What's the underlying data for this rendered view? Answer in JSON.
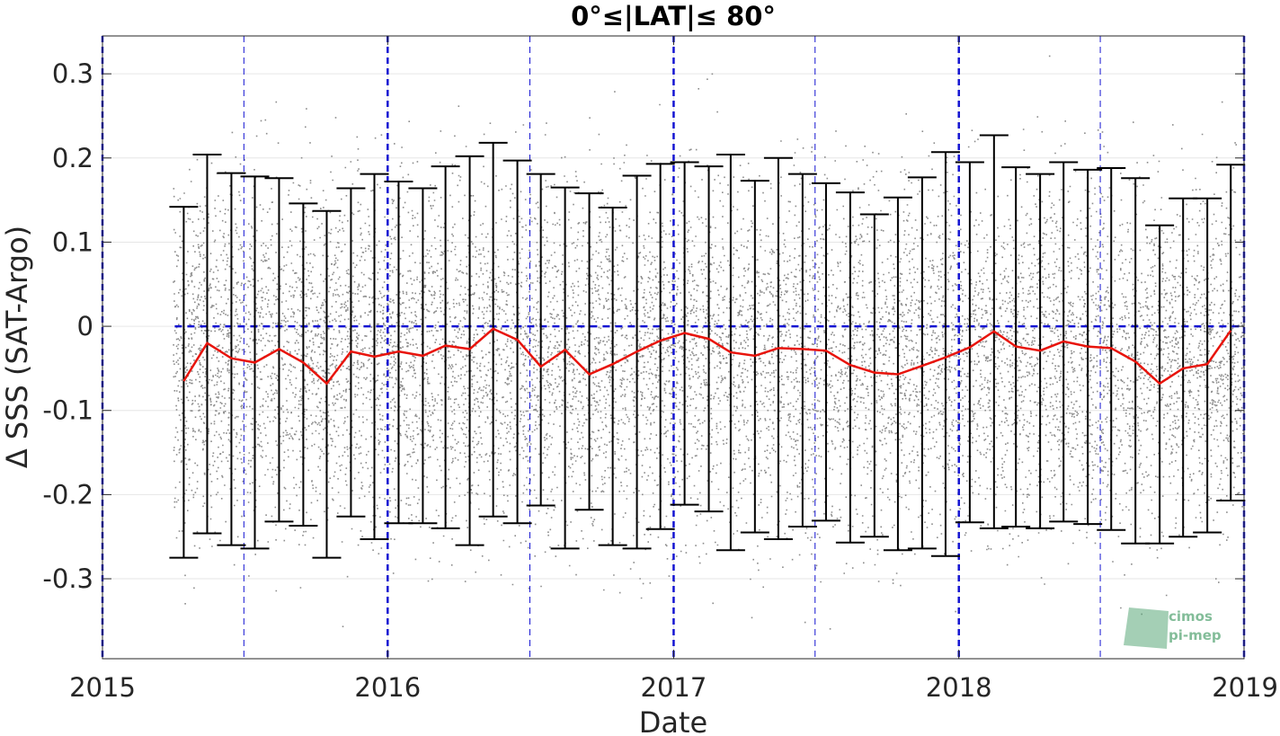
{
  "chart_data": {
    "type": "scatter",
    "title": "0°≤|LAT|≤ 80°",
    "xlabel": "Date",
    "ylabel": "Δ SSS (SAT-Argo)",
    "xlim": [
      "2015-01-01",
      "2019-01-01"
    ],
    "ylim": [
      -0.395,
      0.345
    ],
    "x_ticks": [
      "2015",
      "2016",
      "2017",
      "2018",
      "2019"
    ],
    "y_ticks": [
      -0.3,
      -0.2,
      -0.1,
      0,
      0.1,
      0.2,
      0.3
    ],
    "y_tick_labels": [
      "-0.3",
      "-0.2",
      "-0.1",
      "0",
      "0.1",
      "0.2",
      "0.3"
    ],
    "grid": true,
    "scatter_start": "2015-04-01",
    "scatter_color": "#8c8c8c",
    "median_color": "#e8140c",
    "errorbar_color": "#000000",
    "reference_line_color": "#1414d2",
    "reference_line_y": 0,
    "year_lines": [
      "2015-01-01",
      "2016-01-01",
      "2017-01-01",
      "2018-01-01",
      "2019-01-01"
    ],
    "midyear_lines": [
      "2015-07-01",
      "2016-07-01",
      "2017-07-01",
      "2018-07-01"
    ],
    "series": [
      {
        "x": [
          "2015-04-15",
          "2015-05-15",
          "2015-06-15",
          "2015-07-15",
          "2015-08-15",
          "2015-09-15",
          "2015-10-15",
          "2015-11-15",
          "2015-12-15",
          "2016-01-15",
          "2016-02-15",
          "2016-03-15",
          "2016-04-15",
          "2016-05-15",
          "2016-06-15",
          "2016-07-15",
          "2016-08-15",
          "2016-09-15",
          "2016-10-15",
          "2016-11-15",
          "2016-12-15",
          "2017-01-15",
          "2017-02-15",
          "2017-03-15",
          "2017-04-15",
          "2017-05-15",
          "2017-06-15",
          "2017-07-15",
          "2017-08-15",
          "2017-09-15",
          "2017-10-15",
          "2017-11-15",
          "2017-12-15",
          "2018-01-15",
          "2018-02-15",
          "2018-03-15",
          "2018-04-15",
          "2018-05-15",
          "2018-06-15",
          "2018-07-15",
          "2018-08-15",
          "2018-09-15",
          "2018-10-15",
          "2018-11-15",
          "2018-12-15"
        ],
        "median": [
          -0.065,
          -0.02,
          -0.038,
          -0.043,
          -0.027,
          -0.043,
          -0.068,
          -0.03,
          -0.036,
          -0.03,
          -0.035,
          -0.023,
          -0.027,
          -0.003,
          -0.016,
          -0.048,
          -0.028,
          -0.057,
          -0.045,
          -0.03,
          -0.017,
          -0.008,
          -0.015,
          -0.031,
          -0.035,
          -0.026,
          -0.027,
          -0.029,
          -0.046,
          -0.055,
          -0.057,
          -0.047,
          -0.037,
          -0.025,
          -0.006,
          -0.024,
          -0.029,
          -0.018,
          -0.024,
          -0.026,
          -0.042,
          -0.068,
          -0.05,
          -0.045,
          -0.005
        ],
        "upper": [
          0.142,
          0.204,
          0.182,
          0.178,
          0.176,
          0.146,
          0.137,
          0.164,
          0.181,
          0.172,
          0.164,
          0.19,
          0.202,
          0.218,
          0.197,
          0.181,
          0.165,
          0.158,
          0.141,
          0.179,
          0.193,
          0.195,
          0.19,
          0.204,
          0.173,
          0.2,
          0.181,
          0.17,
          0.159,
          0.133,
          0.153,
          0.177,
          0.207,
          0.195,
          0.227,
          0.189,
          0.181,
          0.195,
          0.186,
          0.188,
          0.176,
          0.12,
          0.152,
          0.152,
          0.192
        ],
        "lower": [
          -0.275,
          -0.246,
          -0.26,
          -0.264,
          -0.232,
          -0.237,
          -0.275,
          -0.226,
          -0.253,
          -0.234,
          -0.234,
          -0.24,
          -0.26,
          -0.226,
          -0.234,
          -0.213,
          -0.264,
          -0.218,
          -0.26,
          -0.264,
          -0.241,
          -0.212,
          -0.22,
          -0.266,
          -0.245,
          -0.253,
          -0.238,
          -0.231,
          -0.257,
          -0.25,
          -0.266,
          -0.264,
          -0.273,
          -0.233,
          -0.24,
          -0.238,
          -0.24,
          -0.232,
          -0.235,
          -0.242,
          -0.258,
          -0.258,
          -0.25,
          -0.245,
          -0.207
        ]
      }
    ]
  },
  "logo": {
    "text_line1": "cimos",
    "text_line2": "pi-mep"
  }
}
